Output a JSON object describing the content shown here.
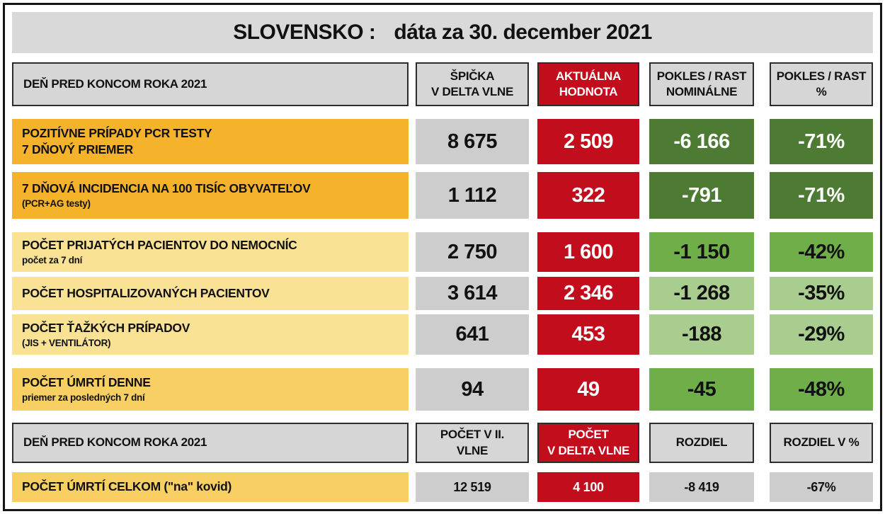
{
  "title": {
    "country": "SLOVENSKO :",
    "date": "dáta za 30. december 2021"
  },
  "table": {
    "header1": {
      "label": "DEŇ PRED KONCOM ROKA 2021",
      "peak_line1": "ŠPIČKA",
      "peak_line2": "V DELTA VLNE",
      "current_line1": "AKTUÁLNA",
      "current_line2": "HODNOTA",
      "nominal_line1": "POKLES / RAST",
      "nominal_line2": "NOMINÁLNE",
      "percent_line1": "POKLES / RAST",
      "percent_line2": "%"
    },
    "rows": [
      {
        "label": "POZITÍVNE PRÍPADY PCR TESTY",
        "sublabel": "7 DŇOVÝ PRIEMER",
        "peak": "8 675",
        "current": "2 509",
        "change": "-6 166",
        "percent": "-71%"
      },
      {
        "label": "7 DŇOVÁ INCIDENCIA NA 100 TISÍC OBYVATEĽOV",
        "sublabel": "(PCR+AG testy)",
        "peak": "1 112",
        "current": "322",
        "change": "-791",
        "percent": "-71%"
      },
      {
        "label": "POČET PRIJATÝCH PACIENTOV DO NEMOCNÍC",
        "sublabel": "počet za 7 dní",
        "peak": "2 750",
        "current": "1 600",
        "change": "-1 150",
        "percent": "-42%"
      },
      {
        "label": "POČET HOSPITALIZOVANÝCH PACIENTOV",
        "sublabel": "",
        "peak": "3 614",
        "current": "2 346",
        "change": "-1 268",
        "percent": "-35%"
      },
      {
        "label": "POČET ŤAŽKÝCH PRÍPADOV",
        "sublabel": "(JIS + VENTILÁTOR)",
        "peak": "641",
        "current": "453",
        "change": "-188",
        "percent": "-29%"
      },
      {
        "label": "POČET ÚMRTÍ DENNE",
        "sublabel": "priemer za posledných 7 dní",
        "peak": "94",
        "current": "49",
        "change": "-45",
        "percent": "-48%"
      }
    ],
    "header2": {
      "label": "DEŇ PRED KONCOM ROKA 2021",
      "wave2_line1": "POČET V II.",
      "wave2_line2": "VLNE",
      "delta_line1": "POČET",
      "delta_line2": "V DELTA VLNE",
      "diff": "ROZDIEL",
      "diff_pct": "ROZDIEL V %"
    },
    "total_row": {
      "label": "POČET ÚMRTÍ CELKOM  (\"na\" kovid)",
      "wave2": "12 519",
      "delta": "4 100",
      "diff": "-8 419",
      "diff_pct": "-67%"
    }
  },
  "colors": {
    "title_bar_gray": "#D9D9D9",
    "header_gray": "#D6D6D6",
    "value_gray": "#CDCDCD",
    "red": "#C20E1C",
    "amber": "#F5B32C",
    "pale_yellow": "#FAE294",
    "gold": "#F8CF63",
    "green_dark": "#4E7B33",
    "green_mid": "#6FAE49",
    "green_light": "#A8CD8F"
  },
  "chart_data": {
    "type": "table",
    "title": "SLOVENSKO : dáta za 30. december 2021",
    "sections": [
      {
        "columns": [
          "DEŇ PRED KONCOM ROKA 2021",
          "ŠPIČKA V DELTA VLNE",
          "AKTUÁLNA HODNOTA",
          "POKLES / RAST NOMINÁLNE",
          "POKLES / RAST %"
        ],
        "rows": [
          [
            "POZITÍVNE PRÍPADY PCR TESTY 7 DŇOVÝ PRIEMER",
            8675,
            2509,
            -6166,
            "-71%"
          ],
          [
            "7 DŇOVÁ INCIDENCIA NA 100 TISÍC OBYVATEĽOV (PCR+AG testy)",
            1112,
            322,
            -791,
            "-71%"
          ],
          [
            "POČET PRIJATÝCH PACIENTOV DO NEMOCNÍC počet za 7 dní",
            2750,
            1600,
            -1150,
            "-42%"
          ],
          [
            "POČET HOSPITALIZOVANÝCH PACIENTOV",
            3614,
            2346,
            -1268,
            "-35%"
          ],
          [
            "POČET ŤAŽKÝCH PRÍPADOV (JIS + VENTILÁTOR)",
            641,
            453,
            -188,
            "-29%"
          ],
          [
            "POČET ÚMRTÍ DENNE priemer za posledných 7 dní",
            94,
            49,
            -45,
            "-48%"
          ]
        ]
      },
      {
        "columns": [
          "DEŇ PRED KONCOM ROKA 2021",
          "POČET V II. VLNE",
          "POČET V DELTA VLNE",
          "ROZDIEL",
          "ROZDIEL V %"
        ],
        "rows": [
          [
            "POČET ÚMRTÍ CELKOM (\"na\" kovid)",
            12519,
            4100,
            -8419,
            "-67%"
          ]
        ]
      }
    ]
  }
}
